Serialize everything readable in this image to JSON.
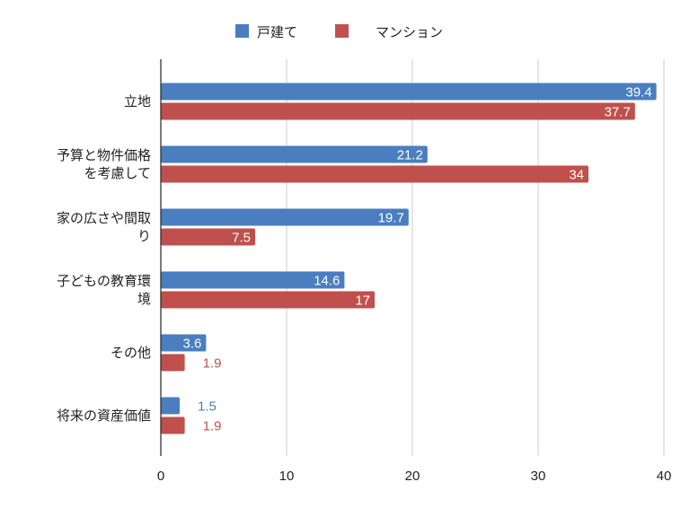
{
  "chart_data": {
    "type": "bar",
    "orientation": "horizontal",
    "categories": [
      [
        "立地"
      ],
      [
        "予算と物件価格",
        "を考慮して"
      ],
      [
        "家の広さや間取",
        "り"
      ],
      [
        "子どもの教育環",
        "境"
      ],
      [
        "その他"
      ],
      [
        "将来の資産価値"
      ]
    ],
    "series": [
      {
        "name": "戸建て",
        "color": "#4a7ebf",
        "values": [
          39.4,
          21.2,
          19.7,
          14.6,
          3.6,
          1.5
        ]
      },
      {
        "name": "マンション",
        "color": "#c0504d",
        "values": [
          37.7,
          34,
          7.5,
          17,
          1.9,
          1.9
        ]
      }
    ],
    "xlim": [
      0,
      40
    ],
    "xticks": [
      0,
      10,
      20,
      30,
      40
    ],
    "grid": true,
    "legend_position": "top"
  }
}
